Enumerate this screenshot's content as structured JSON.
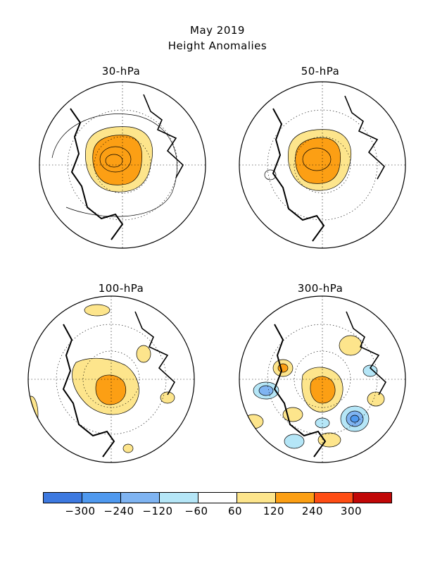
{
  "title": {
    "line1": "May 2019",
    "line2": "Height Anomalies"
  },
  "panels": [
    {
      "label": "30-hPa"
    },
    {
      "label": "50-hPa"
    },
    {
      "label": "100-hPa"
    },
    {
      "label": "300-hPa"
    }
  ],
  "colorbar": {
    "colors": [
      "#3d79e0",
      "#4f99ef",
      "#7fb4f2",
      "#b5e6f7",
      "#ffffff",
      "#fde58c",
      "#fc9f14",
      "#fe4d14",
      "#c10707"
    ],
    "ticks": [
      "-300",
      "-240",
      "-120",
      "-60",
      "60",
      "120",
      "240",
      "300"
    ]
  },
  "colors": {
    "positive_light": "#fde58c",
    "positive_mid": "#fc9f14",
    "negative_light": "#b5e6f7",
    "negative_mid": "#7fb4f2",
    "negative_strong": "#4f99ef"
  }
}
